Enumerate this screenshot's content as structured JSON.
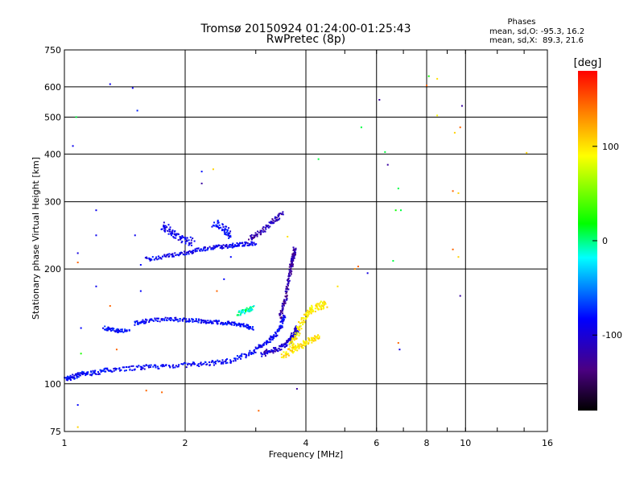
{
  "chart_data": {
    "type": "scatter",
    "title": "Tromsø 20150924 01:24:00-01:25:43",
    "subtitle": "RwPretec (8p)",
    "xlabel": "Frequency [MHz]",
    "ylabel": "Stationary phase Virtual Height [km]",
    "x_scale": "log",
    "y_scale": "log",
    "xlim": [
      1,
      16
    ],
    "ylim": [
      75,
      750
    ],
    "x_ticks": [
      1,
      2,
      4,
      6,
      8,
      10,
      16
    ],
    "y_ticks": [
      75,
      100,
      200,
      300,
      400,
      500,
      600,
      750
    ],
    "grid": true,
    "stats": {
      "title": "Phases",
      "line1": "mean, sd,O: -95.3, 16.2",
      "line2": "mean, sd,X:  89.3, 21.6"
    },
    "colorbar": {
      "label": "[deg]",
      "range": [
        -180,
        180
      ],
      "ticks": [
        100,
        0,
        -100
      ]
    },
    "traces": [
      {
        "x": [
          1.0,
          1.05,
          1.1,
          1.2,
          1.3,
          1.5,
          1.7,
          2.0,
          2.3,
          2.6,
          2.9,
          3.1,
          3.3,
          3.45,
          3.55
        ],
        "y": [
          103,
          104,
          106,
          107,
          109,
          110,
          111,
          112,
          113,
          115,
          120,
          126,
          132,
          140,
          152
        ],
        "phase": -100,
        "spread": 0.012
      },
      {
        "x": [
          1.5,
          1.6,
          1.8,
          2.0,
          2.2,
          2.4,
          2.6,
          2.8,
          2.95
        ],
        "y": [
          144,
          146,
          148,
          147,
          146,
          145,
          144,
          142,
          140
        ],
        "phase": -100,
        "spread": 0.01
      },
      {
        "x": [
          1.25,
          1.35,
          1.45
        ],
        "y": [
          140,
          138,
          137
        ],
        "phase": -95,
        "spread": 0.01
      },
      {
        "x": [
          2.7,
          2.85,
          2.95
        ],
        "y": [
          152,
          156,
          158
        ],
        "phase": -15,
        "spread": 0.012
      },
      {
        "x": [
          3.45,
          3.55,
          3.62,
          3.68,
          3.72,
          3.75
        ],
        "y": [
          150,
          165,
          185,
          205,
          215,
          225
        ],
        "phase": -130,
        "spread": 0.012
      },
      {
        "x": [
          3.1,
          3.3,
          3.5,
          3.65,
          3.75,
          3.8
        ],
        "y": [
          120,
          122,
          125,
          130,
          135,
          140
        ],
        "phase": -115,
        "spread": 0.015
      },
      {
        "x": [
          3.65,
          3.8,
          3.95,
          4.1,
          4.3,
          4.5
        ],
        "y": [
          125,
          135,
          148,
          156,
          160,
          162
        ],
        "phase": 105,
        "spread": 0.02
      },
      {
        "x": [
          3.5,
          3.7,
          3.9,
          4.1,
          4.3
        ],
        "y": [
          118,
          123,
          126,
          130,
          133
        ],
        "phase": 110,
        "spread": 0.015
      },
      {
        "x": [
          1.6,
          1.8,
          2.0,
          2.2,
          2.4,
          2.6,
          2.8,
          3.0
        ],
        "y": [
          212,
          216,
          220,
          225,
          228,
          230,
          232,
          234
        ],
        "phase": -105,
        "spread": 0.01
      },
      {
        "x": [
          2.9,
          3.1,
          3.3,
          3.5
        ],
        "y": [
          240,
          250,
          265,
          280
        ],
        "phase": -125,
        "spread": 0.012
      },
      {
        "x": [
          1.75,
          1.85,
          1.95,
          2.1
        ],
        "y": [
          260,
          250,
          240,
          235
        ],
        "phase": -105,
        "spread": 0.02
      },
      {
        "x": [
          2.35,
          2.5,
          2.6
        ],
        "y": [
          265,
          255,
          245
        ],
        "phase": -100,
        "spread": 0.02
      }
    ],
    "points": [
      {
        "x": 1.05,
        "y": 420,
        "phase": -105
      },
      {
        "x": 1.07,
        "y": 500,
        "phase": -5
      },
      {
        "x": 1.3,
        "y": 610,
        "phase": -105
      },
      {
        "x": 1.48,
        "y": 596,
        "phase": -105
      },
      {
        "x": 1.52,
        "y": 520,
        "phase": -90
      },
      {
        "x": 2.2,
        "y": 360,
        "phase": -95
      },
      {
        "x": 2.35,
        "y": 365,
        "phase": 115
      },
      {
        "x": 2.2,
        "y": 335,
        "phase": -130
      },
      {
        "x": 1.2,
        "y": 285,
        "phase": -105
      },
      {
        "x": 1.2,
        "y": 245,
        "phase": -105
      },
      {
        "x": 1.5,
        "y": 245,
        "phase": -105
      },
      {
        "x": 1.08,
        "y": 220,
        "phase": -110
      },
      {
        "x": 1.08,
        "y": 208,
        "phase": 150
      },
      {
        "x": 1.55,
        "y": 205,
        "phase": -100
      },
      {
        "x": 1.2,
        "y": 180,
        "phase": -105
      },
      {
        "x": 1.55,
        "y": 175,
        "phase": -100
      },
      {
        "x": 1.3,
        "y": 160,
        "phase": 150
      },
      {
        "x": 1.1,
        "y": 140,
        "phase": -100
      },
      {
        "x": 1.35,
        "y": 123,
        "phase": 150
      },
      {
        "x": 1.1,
        "y": 120,
        "phase": 10
      },
      {
        "x": 1.6,
        "y": 96,
        "phase": 150
      },
      {
        "x": 1.75,
        "y": 95,
        "phase": 150
      },
      {
        "x": 1.08,
        "y": 88,
        "phase": -100
      },
      {
        "x": 1.08,
        "y": 77,
        "phase": 115
      },
      {
        "x": 3.05,
        "y": 85,
        "phase": 150
      },
      {
        "x": 3.8,
        "y": 97,
        "phase": -130
      },
      {
        "x": 2.6,
        "y": 215,
        "phase": -100
      },
      {
        "x": 2.5,
        "y": 188,
        "phase": -100
      },
      {
        "x": 2.4,
        "y": 175,
        "phase": 150
      },
      {
        "x": 3.6,
        "y": 243,
        "phase": 110
      },
      {
        "x": 4.3,
        "y": 388,
        "phase": -5
      },
      {
        "x": 5.5,
        "y": 470,
        "phase": -5
      },
      {
        "x": 6.1,
        "y": 555,
        "phase": -130
      },
      {
        "x": 6.4,
        "y": 375,
        "phase": -130
      },
      {
        "x": 6.3,
        "y": 405,
        "phase": -5
      },
      {
        "x": 6.8,
        "y": 325,
        "phase": -5
      },
      {
        "x": 6.7,
        "y": 285,
        "phase": 5
      },
      {
        "x": 6.9,
        "y": 285,
        "phase": -5
      },
      {
        "x": 6.6,
        "y": 210,
        "phase": -5
      },
      {
        "x": 5.3,
        "y": 200,
        "phase": 140
      },
      {
        "x": 5.4,
        "y": 203,
        "phase": 150
      },
      {
        "x": 5.7,
        "y": 195,
        "phase": -110
      },
      {
        "x": 4.8,
        "y": 180,
        "phase": 110
      },
      {
        "x": 6.8,
        "y": 128,
        "phase": 150
      },
      {
        "x": 6.85,
        "y": 123,
        "phase": -110
      },
      {
        "x": 8.1,
        "y": 640,
        "phase": 5
      },
      {
        "x": 8.5,
        "y": 630,
        "phase": 110
      },
      {
        "x": 8.5,
        "y": 505,
        "phase": 100
      },
      {
        "x": 8.0,
        "y": 605,
        "phase": 150
      },
      {
        "x": 9.8,
        "y": 535,
        "phase": -130
      },
      {
        "x": 9.7,
        "y": 470,
        "phase": 150
      },
      {
        "x": 9.4,
        "y": 455,
        "phase": 115
      },
      {
        "x": 9.3,
        "y": 320,
        "phase": 150
      },
      {
        "x": 9.6,
        "y": 316,
        "phase": 115
      },
      {
        "x": 9.3,
        "y": 225,
        "phase": 150
      },
      {
        "x": 9.6,
        "y": 215,
        "phase": 115
      },
      {
        "x": 9.7,
        "y": 170,
        "phase": -130
      },
      {
        "x": 14.2,
        "y": 403,
        "phase": 115
      }
    ]
  }
}
